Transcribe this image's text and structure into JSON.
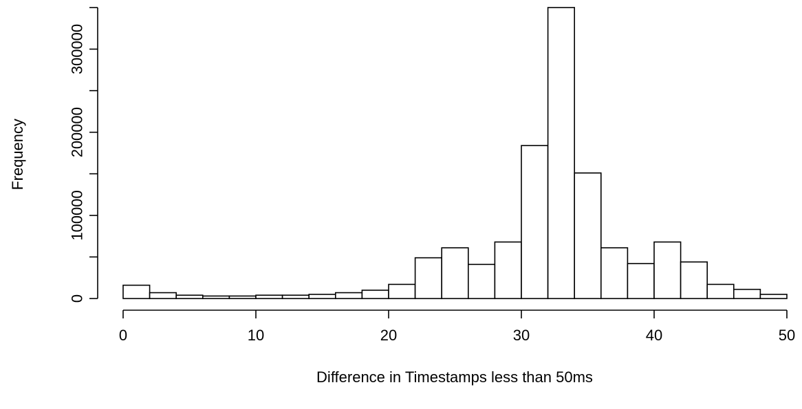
{
  "chart_data": {
    "type": "bar",
    "title": "",
    "xlabel": "Difference in Timestamps less than 50ms",
    "ylabel": "Frequency",
    "bin_edges": [
      0,
      2,
      4,
      6,
      8,
      10,
      12,
      14,
      16,
      18,
      20,
      22,
      24,
      26,
      28,
      30,
      32,
      34,
      36,
      38,
      40,
      42,
      44,
      46,
      48,
      50
    ],
    "values": [
      16000,
      7000,
      4000,
      3000,
      3000,
      4000,
      4000,
      5000,
      7000,
      10000,
      17000,
      49000,
      61000,
      41000,
      68000,
      184000,
      350000,
      151000,
      61000,
      42000,
      68000,
      44000,
      17000,
      11000,
      5000
    ],
    "xlim": [
      0,
      50
    ],
    "ylim": [
      0,
      350000
    ],
    "x_ticks": [
      0,
      10,
      20,
      30,
      40,
      50
    ],
    "y_ticks": [
      0,
      100000,
      200000,
      300000
    ],
    "y_minor_ticks": [
      50000,
      150000,
      250000,
      350000
    ],
    "x_tick_labels": [
      "0",
      "10",
      "20",
      "30",
      "40",
      "50"
    ],
    "y_tick_labels": [
      "0",
      "100000",
      "200000",
      "300000"
    ],
    "grid": false,
    "legend": "none"
  }
}
